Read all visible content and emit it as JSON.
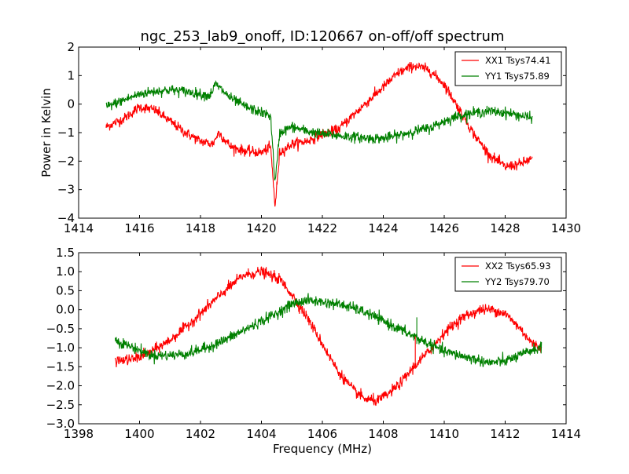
{
  "chart_data": [
    {
      "type": "line",
      "title": "ngc_253_lab9_onoff, ID:120667 on-off/off spectrum",
      "xlabel": "",
      "ylabel": "Power in Kelvin",
      "xlim": [
        1414,
        1430
      ],
      "ylim": [
        -4,
        2
      ],
      "xticks": [
        1414,
        1416,
        1418,
        1420,
        1422,
        1424,
        1426,
        1428,
        1430
      ],
      "xtick_labels": [
        "1414",
        "1416",
        "1418",
        "1420",
        "1422",
        "1424",
        "1426",
        "1428",
        "1430"
      ],
      "yticks": [
        -4,
        -3,
        -2,
        -1,
        0,
        1,
        2
      ],
      "ytick_labels": [
        "−4",
        "−3",
        "−2",
        "−1",
        "0",
        "1",
        "2"
      ],
      "grid": false,
      "legend_position": "top-right",
      "series": [
        {
          "name": "XX1 Tsys74.41",
          "color": "#ff0000",
          "noise": 0.09,
          "points": [
            [
              1414.9,
              -0.8
            ],
            [
              1415.5,
              -0.5
            ],
            [
              1416.0,
              -0.1
            ],
            [
              1416.5,
              -0.2
            ],
            [
              1417.0,
              -0.6
            ],
            [
              1417.5,
              -1.0
            ],
            [
              1418.0,
              -1.3
            ],
            [
              1418.4,
              -1.4
            ],
            [
              1418.6,
              -1.0
            ],
            [
              1419.0,
              -1.5
            ],
            [
              1419.5,
              -1.65
            ],
            [
              1420.0,
              -1.7
            ],
            [
              1420.3,
              -1.5
            ],
            [
              1420.45,
              -3.6
            ],
            [
              1420.6,
              -1.7
            ],
            [
              1421.0,
              -1.4
            ],
            [
              1421.5,
              -1.3
            ],
            [
              1422.0,
              -1.05
            ],
            [
              1422.5,
              -0.9
            ],
            [
              1423.0,
              -0.4
            ],
            [
              1423.5,
              0.1
            ],
            [
              1424.0,
              0.6
            ],
            [
              1424.5,
              1.1
            ],
            [
              1425.0,
              1.35
            ],
            [
              1425.5,
              1.2
            ],
            [
              1426.0,
              0.7
            ],
            [
              1426.5,
              -0.2
            ],
            [
              1427.0,
              -1.1
            ],
            [
              1427.5,
              -1.8
            ],
            [
              1428.0,
              -2.2
            ],
            [
              1428.5,
              -2.1
            ],
            [
              1428.9,
              -1.9
            ]
          ]
        },
        {
          "name": "YY1 Tsys75.89",
          "color": "#008000",
          "noise": 0.09,
          "points": [
            [
              1414.9,
              -0.1
            ],
            [
              1415.5,
              0.15
            ],
            [
              1416.0,
              0.35
            ],
            [
              1416.5,
              0.45
            ],
            [
              1417.0,
              0.5
            ],
            [
              1417.5,
              0.45
            ],
            [
              1418.0,
              0.35
            ],
            [
              1418.3,
              0.3
            ],
            [
              1418.5,
              0.7
            ],
            [
              1419.0,
              0.2
            ],
            [
              1419.5,
              -0.1
            ],
            [
              1420.0,
              -0.3
            ],
            [
              1420.3,
              -0.4
            ],
            [
              1420.45,
              -2.8
            ],
            [
              1420.6,
              -1.0
            ],
            [
              1421.0,
              -0.8
            ],
            [
              1421.5,
              -0.95
            ],
            [
              1422.0,
              -1.05
            ],
            [
              1422.5,
              -1.1
            ],
            [
              1423.0,
              -1.15
            ],
            [
              1423.5,
              -1.2
            ],
            [
              1424.0,
              -1.2
            ],
            [
              1424.5,
              -1.1
            ],
            [
              1425.0,
              -0.95
            ],
            [
              1425.5,
              -0.85
            ],
            [
              1426.0,
              -0.6
            ],
            [
              1426.5,
              -0.4
            ],
            [
              1427.0,
              -0.3
            ],
            [
              1427.5,
              -0.25
            ],
            [
              1428.0,
              -0.3
            ],
            [
              1428.5,
              -0.4
            ],
            [
              1428.9,
              -0.5
            ]
          ]
        }
      ]
    },
    {
      "type": "line",
      "title": "",
      "xlabel": "Frequency (MHz)",
      "ylabel": "",
      "xlim": [
        1398,
        1414
      ],
      "ylim": [
        -3.0,
        1.5
      ],
      "xticks": [
        1398,
        1400,
        1402,
        1404,
        1406,
        1408,
        1410,
        1412,
        1414
      ],
      "xtick_labels": [
        "1398",
        "1400",
        "1402",
        "1404",
        "1406",
        "1408",
        "1410",
        "1412",
        "1414"
      ],
      "yticks": [
        -3.0,
        -2.5,
        -2.0,
        -1.5,
        -1.0,
        -0.5,
        0.0,
        0.5,
        1.0,
        1.5
      ],
      "ytick_labels": [
        "−3.0",
        "−2.5",
        "−2.0",
        "−1.5",
        "−1.0",
        "−0.5",
        "0.0",
        "0.5",
        "1.0",
        "1.5"
      ],
      "grid": false,
      "legend_position": "top-right",
      "series": [
        {
          "name": "XX2 Tsys65.93",
          "color": "#ff0000",
          "noise": 0.07,
          "points": [
            [
              1399.2,
              -1.35
            ],
            [
              1399.8,
              -1.3
            ],
            [
              1400.4,
              -1.1
            ],
            [
              1401.0,
              -0.8
            ],
            [
              1401.6,
              -0.4
            ],
            [
              1402.2,
              0.05
            ],
            [
              1402.8,
              0.5
            ],
            [
              1403.4,
              0.9
            ],
            [
              1404.0,
              1.0
            ],
            [
              1404.6,
              0.8
            ],
            [
              1405.0,
              0.4
            ],
            [
              1405.5,
              -0.2
            ],
            [
              1406.0,
              -0.9
            ],
            [
              1406.5,
              -1.6
            ],
            [
              1407.0,
              -2.1
            ],
            [
              1407.4,
              -2.35
            ],
            [
              1407.8,
              -2.4
            ],
            [
              1408.2,
              -2.2
            ],
            [
              1408.6,
              -1.9
            ],
            [
              1409.0,
              -1.5
            ],
            [
              1409.5,
              -1.1
            ],
            [
              1410.0,
              -0.6
            ],
            [
              1410.6,
              -0.2
            ],
            [
              1411.2,
              0.0
            ],
            [
              1411.6,
              0.0
            ],
            [
              1412.0,
              -0.1
            ],
            [
              1412.5,
              -0.5
            ],
            [
              1412.9,
              -0.9
            ],
            [
              1413.2,
              -1.0
            ]
          ]
        },
        {
          "name": "YY2 Tsys79.70",
          "color": "#008000",
          "noise": 0.07,
          "points": [
            [
              1399.2,
              -0.8
            ],
            [
              1399.8,
              -1.0
            ],
            [
              1400.4,
              -1.2
            ],
            [
              1401.0,
              -1.2
            ],
            [
              1401.6,
              -1.15
            ],
            [
              1402.2,
              -1.0
            ],
            [
              1402.8,
              -0.8
            ],
            [
              1403.4,
              -0.55
            ],
            [
              1404.0,
              -0.3
            ],
            [
              1404.6,
              -0.05
            ],
            [
              1405.0,
              0.15
            ],
            [
              1405.5,
              0.25
            ],
            [
              1406.0,
              0.2
            ],
            [
              1406.5,
              0.15
            ],
            [
              1407.0,
              0.05
            ],
            [
              1407.5,
              -0.1
            ],
            [
              1408.0,
              -0.3
            ],
            [
              1408.5,
              -0.5
            ],
            [
              1409.0,
              -0.7
            ],
            [
              1409.5,
              -0.9
            ],
            [
              1410.0,
              -1.1
            ],
            [
              1410.5,
              -1.2
            ],
            [
              1411.0,
              -1.3
            ],
            [
              1411.5,
              -1.4
            ],
            [
              1412.0,
              -1.35
            ],
            [
              1412.5,
              -1.2
            ],
            [
              1412.9,
              -1.05
            ],
            [
              1413.2,
              -1.0
            ]
          ]
        }
      ]
    }
  ]
}
